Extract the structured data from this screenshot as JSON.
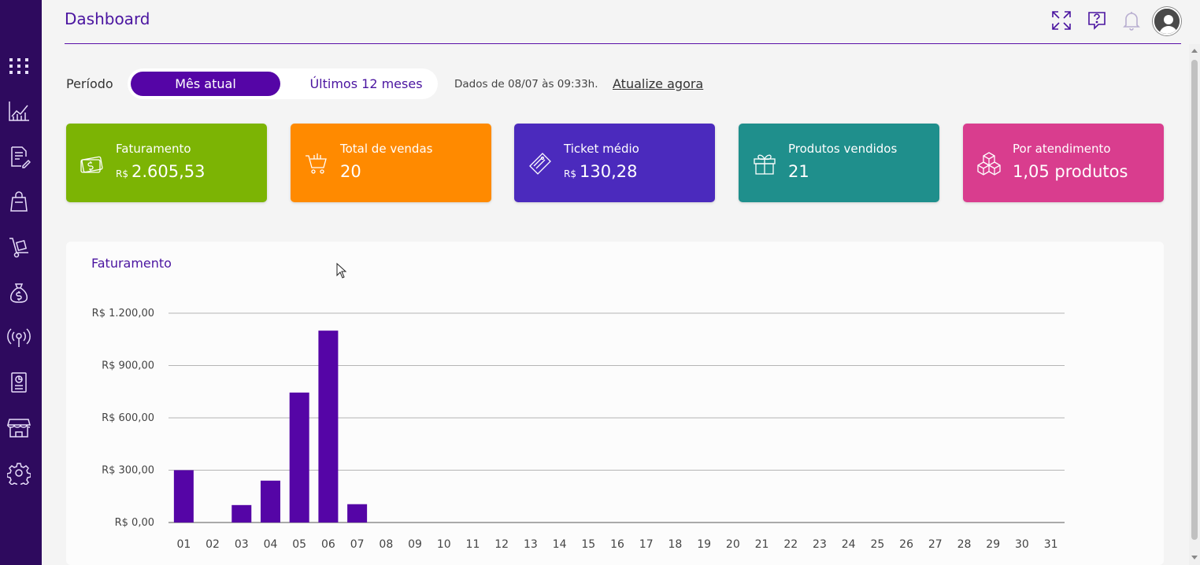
{
  "header": {
    "title": "Dashboard"
  },
  "sidebar": {
    "items": [
      "apps-grid-icon",
      "chart-icon",
      "document-edit-icon",
      "shopping-bag-icon",
      "hand-truck-icon",
      "money-bag-icon",
      "broadcast-icon",
      "report-icon",
      "store-icon",
      "gear-icon"
    ]
  },
  "period": {
    "label": "Período",
    "options": [
      "Mês atual",
      "Últimos 12 meses"
    ],
    "selected": "Mês atual",
    "data_info": "Dados de 08/07 às 09:33h.",
    "update_link": "Atualize agora"
  },
  "cards": [
    {
      "label": "Faturamento",
      "prefix": "R$",
      "value": "2.605,53",
      "color": "#7cb404",
      "icon": "money-icon"
    },
    {
      "label": "Total de vendas",
      "prefix": "",
      "value": "20",
      "color": "#ff8a00",
      "icon": "cart-icon"
    },
    {
      "label": "Ticket médio",
      "prefix": "R$",
      "value": "130,28",
      "color": "#4b2abd",
      "icon": "ticket-icon"
    },
    {
      "label": "Produtos vendidos",
      "prefix": "",
      "value": "21",
      "color": "#1f8f8c",
      "icon": "gift-icon"
    },
    {
      "label": "Por atendimento",
      "prefix": "",
      "value": "1,05 produtos",
      "color": "#d93d8e",
      "icon": "boxes-icon"
    }
  ],
  "chart": {
    "title": "Faturamento"
  },
  "chart_data": {
    "type": "bar",
    "title": "Faturamento",
    "categories": [
      "01",
      "02",
      "03",
      "04",
      "05",
      "06",
      "07",
      "08",
      "09",
      "10",
      "11",
      "12",
      "13",
      "14",
      "15",
      "16",
      "17",
      "18",
      "19",
      "20",
      "21",
      "22",
      "23",
      "24",
      "25",
      "26",
      "27",
      "28",
      "29",
      "30",
      "31"
    ],
    "values": [
      300,
      0,
      100,
      240,
      745,
      1100,
      105,
      0,
      0,
      0,
      0,
      0,
      0,
      0,
      0,
      0,
      0,
      0,
      0,
      0,
      0,
      0,
      0,
      0,
      0,
      0,
      0,
      0,
      0,
      0,
      0
    ],
    "y_ticks": [
      0,
      300,
      600,
      900,
      1200
    ],
    "y_tick_labels": [
      "R$ 0,00",
      "R$ 300,00",
      "R$ 600,00",
      "R$ 900,00",
      "R$ 1.200,00"
    ],
    "ylim": [
      0,
      1200
    ],
    "bar_color": "#5505a6",
    "grid": true
  }
}
